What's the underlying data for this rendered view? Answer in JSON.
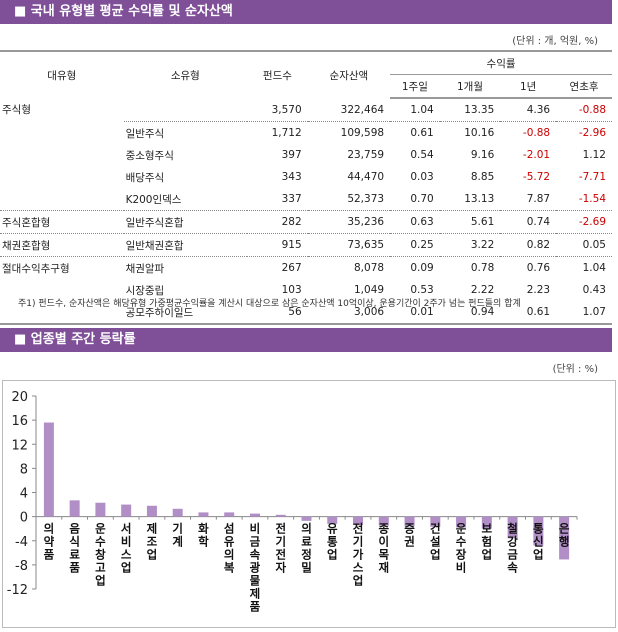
{
  "section1": {
    "title": "■ 국내 유형별 평균 수익률 및 순자산액",
    "unit": "(단위 : 개, 억원, %)",
    "headers": {
      "major": "대유형",
      "minor": "소유형",
      "funds": "펀드수",
      "assets": "순자산액",
      "returns": "수익률",
      "w1": "1주일",
      "m1": "1개월",
      "y1": "1년",
      "ytd": "연초후"
    },
    "rows": [
      [
        "주식형",
        "",
        "3,570",
        "322,464",
        "1.04",
        "13.35",
        "4.36",
        "-0.88"
      ],
      [
        "",
        "일반주식",
        "1,712",
        "109,598",
        "0.61",
        "10.16",
        "-0.88",
        "-2.96"
      ],
      [
        "",
        "중소형주식",
        "397",
        "23,759",
        "0.54",
        "9.16",
        "-2.01",
        "1.12"
      ],
      [
        "",
        "배당주식",
        "343",
        "44,470",
        "0.03",
        "8.85",
        "-5.72",
        "-7.71"
      ],
      [
        "",
        "K200인덱스",
        "337",
        "52,373",
        "0.70",
        "13.13",
        "7.87",
        "-1.54"
      ],
      [
        "주식혼합형",
        "일반주식혼합",
        "282",
        "35,236",
        "0.63",
        "5.61",
        "0.74",
        "-2.69"
      ],
      [
        "채권혼합형",
        "일반채권혼합",
        "915",
        "73,635",
        "0.25",
        "3.22",
        "0.82",
        "0.05"
      ],
      [
        "절대수익추구형",
        "채권알파",
        "267",
        "8,078",
        "0.09",
        "0.78",
        "0.76",
        "1.04"
      ],
      [
        "",
        "시장중립",
        "103",
        "1,049",
        "0.53",
        "2.22",
        "2.23",
        "0.43"
      ],
      [
        "",
        "공모주하이일드",
        "56",
        "3,006",
        "0.01",
        "0.94",
        "0.61",
        "1.07"
      ]
    ],
    "note": "주1) 펀드수, 순자산액은 해당유형 가중평균수익률을 계산시 대상으로 삼은 순자산액 10억이상, 운용기간이 2주가 넘는 펀드들의 합계"
  },
  "section2": {
    "title": "■ 업종별 주간 등락률",
    "unit": "(단위 : %)"
  },
  "chart_data": {
    "type": "bar",
    "bar_color": "#b18fc6",
    "ylim": [
      -12,
      20
    ],
    "yticks": [
      -12,
      -8,
      -4,
      0,
      4,
      8,
      12,
      16,
      20
    ],
    "grid": false,
    "categories": [
      "의약품",
      "음식료품",
      "운수창고업",
      "서비스업",
      "제조업",
      "기계",
      "화학",
      "섬유의복",
      "비금속광물제품",
      "전기전자",
      "의료정밀",
      "유통업",
      "전기가스업",
      "종이목재",
      "증권",
      "건설업",
      "운수장비",
      "보험업",
      "철강금속",
      "통신업",
      "은행"
    ],
    "labels": [
      "의\n약\n품",
      "음\n식\n료\n품",
      "운\n수\n창\n고\n업",
      "서\n비\n스\n업",
      "제\n조\n업",
      "기\n\n계",
      "화\n\n학",
      "섬\n유\n의\n복",
      "비\n금\n속\n광\n물\n제\n품",
      "전\n기\n전\n자",
      "의\n료\n정\n밀",
      "유\n통\n업",
      "전\n기\n가\n스\n업",
      "종\n이\n목\n재",
      "증\n\n권",
      "건\n설\n업",
      "운\n수\n장\n비",
      "보\n험\n업",
      "철\n강\n금\n속",
      "통\n신\n업",
      "은\n\n행"
    ],
    "values": [
      15.6,
      2.7,
      2.3,
      2.0,
      1.8,
      1.3,
      0.7,
      0.7,
      0.5,
      0.3,
      -0.7,
      -1.2,
      -1.4,
      -1.5,
      -1.6,
      -1.7,
      -1.8,
      -2.0,
      -3.6,
      -4.8,
      -7.1
    ]
  }
}
